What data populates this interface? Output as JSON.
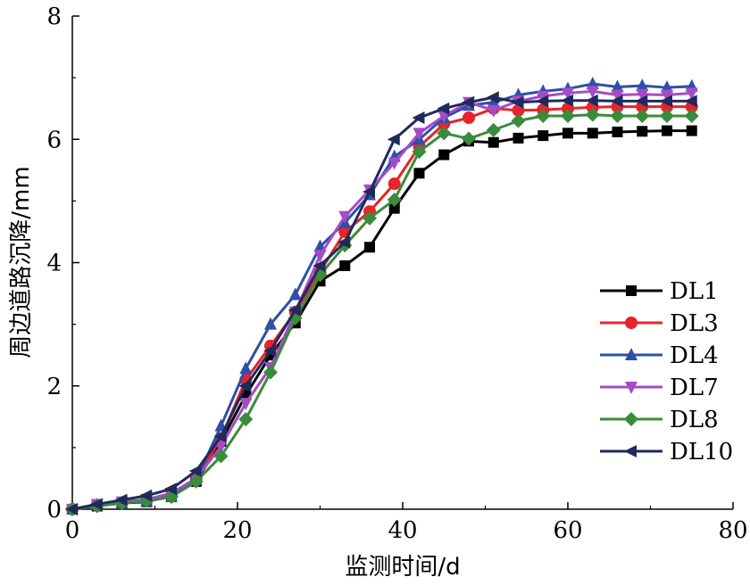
{
  "chart_data": {
    "type": "line",
    "xlabel": "监测时间/d",
    "ylabel": "周边道路沉降/mm",
    "xlim": [
      0,
      80
    ],
    "ylim": [
      0,
      8
    ],
    "xticks": [
      0,
      20,
      40,
      60,
      80
    ],
    "yticks": [
      0,
      2,
      4,
      6,
      8
    ],
    "grid": false,
    "legend_position": "right",
    "x": [
      0,
      3,
      6,
      9,
      12,
      15,
      18,
      21,
      24,
      27,
      30,
      33,
      36,
      39,
      42,
      45,
      48,
      51,
      54,
      57,
      60,
      63,
      66,
      69,
      72,
      75
    ],
    "series": [
      {
        "name": "DL1",
        "color": "#000000",
        "marker": "square",
        "values": [
          0,
          0.05,
          0.1,
          0.12,
          0.22,
          0.45,
          1.1,
          1.85,
          2.5,
          3.02,
          3.7,
          3.95,
          4.25,
          4.88,
          5.45,
          5.75,
          5.97,
          5.95,
          6.02,
          6.06,
          6.1,
          6.1,
          6.12,
          6.13,
          6.14,
          6.14
        ]
      },
      {
        "name": "DL3",
        "color": "#e8232a",
        "marker": "circle",
        "values": [
          0,
          0.06,
          0.1,
          0.14,
          0.22,
          0.5,
          1.15,
          2.1,
          2.65,
          3.2,
          3.85,
          4.5,
          4.83,
          5.28,
          5.88,
          6.25,
          6.35,
          6.5,
          6.47,
          6.48,
          6.5,
          6.52,
          6.53,
          6.53,
          6.53,
          6.53
        ]
      },
      {
        "name": "DL4",
        "color": "#2e4fa8",
        "marker": "triangle-up",
        "values": [
          0,
          0.07,
          0.1,
          0.13,
          0.2,
          0.48,
          1.35,
          2.28,
          3.0,
          3.48,
          4.26,
          4.65,
          5.1,
          5.72,
          6.0,
          6.35,
          6.55,
          6.6,
          6.72,
          6.78,
          6.82,
          6.9,
          6.85,
          6.87,
          6.84,
          6.86
        ]
      },
      {
        "name": "DL7",
        "color": "#a44bc8",
        "marker": "triangle-down",
        "values": [
          0,
          0.08,
          0.12,
          0.16,
          0.26,
          0.5,
          1.02,
          1.72,
          2.3,
          3.2,
          4.12,
          4.75,
          5.18,
          5.62,
          6.1,
          6.38,
          6.6,
          6.47,
          6.62,
          6.7,
          6.75,
          6.78,
          6.72,
          6.73,
          6.72,
          6.75
        ]
      },
      {
        "name": "DL8",
        "color": "#3a8c3a",
        "marker": "diamond",
        "values": [
          0,
          0.05,
          0.1,
          0.14,
          0.2,
          0.45,
          0.86,
          1.46,
          2.22,
          3.1,
          3.8,
          4.28,
          4.72,
          5.02,
          5.8,
          6.1,
          6.01,
          6.15,
          6.3,
          6.38,
          6.38,
          6.4,
          6.38,
          6.38,
          6.38,
          6.38
        ]
      },
      {
        "name": "DL10",
        "color": "#1f2a5c",
        "marker": "triangle-left",
        "values": [
          0,
          0.08,
          0.15,
          0.22,
          0.33,
          0.62,
          1.18,
          2.0,
          2.57,
          3.23,
          3.95,
          4.33,
          5.15,
          6.0,
          6.35,
          6.5,
          6.6,
          6.68,
          6.6,
          6.62,
          6.63,
          6.63,
          6.62,
          6.62,
          6.62,
          6.62
        ]
      }
    ]
  }
}
